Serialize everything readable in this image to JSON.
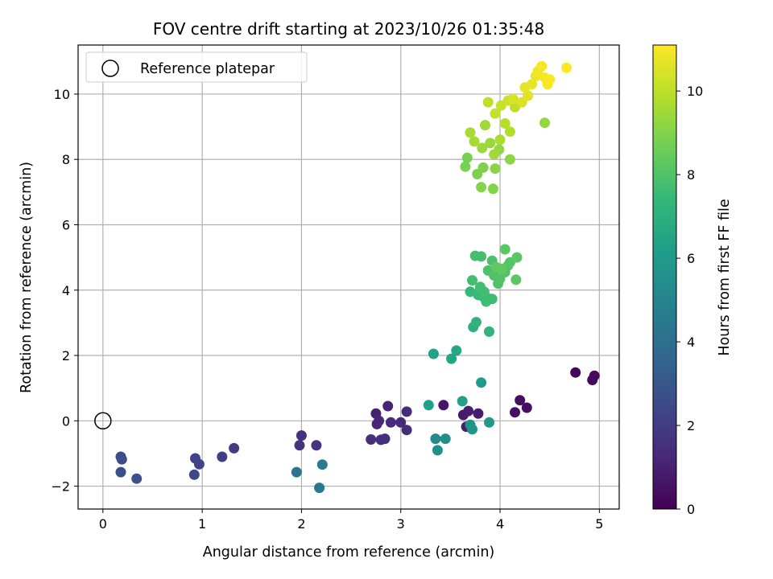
{
  "chart_data": {
    "type": "scatter",
    "title": "FOV centre drift starting at 2023/10/26 01:35:48",
    "xlabel": "Angular distance from reference (arcmin)",
    "ylabel": "Rotation from reference (arcmin)",
    "xlim": [
      -0.25,
      5.2
    ],
    "ylim": [
      -2.7,
      11.5
    ],
    "xticks": [
      0,
      1,
      2,
      3,
      4,
      5
    ],
    "yticks": [
      -2,
      0,
      2,
      4,
      6,
      8,
      10
    ],
    "ytick_labels": [
      "−2",
      "0",
      "2",
      "4",
      "6",
      "8",
      "10"
    ],
    "grid": true,
    "legend": {
      "location": "upper-left",
      "entries": [
        "Reference platepar"
      ]
    },
    "reference_point": {
      "x": 0,
      "y": 0,
      "label": "Reference platepar"
    },
    "colorbar": {
      "label": "Hours from first FF file",
      "colormap": "viridis",
      "range": [
        0,
        11.1
      ],
      "ticks": [
        0,
        2,
        4,
        6,
        8,
        10
      ],
      "colors": [
        "#440154",
        "#482878",
        "#3e4989",
        "#31688e",
        "#26828e",
        "#1f9e89",
        "#35b779",
        "#6ece58",
        "#b5de2b",
        "#fde725"
      ]
    },
    "points": [
      [
        4.76,
        1.48,
        0.2
      ],
      [
        4.93,
        1.25,
        0.25
      ],
      [
        4.95,
        1.38,
        0.3
      ],
      [
        4.2,
        0.63,
        0.4
      ],
      [
        4.27,
        0.4,
        0.45
      ],
      [
        4.15,
        0.26,
        0.5
      ],
      [
        3.43,
        0.48,
        0.7
      ],
      [
        3.63,
        0.18,
        0.8
      ],
      [
        3.68,
        0.3,
        0.9
      ],
      [
        3.78,
        0.22,
        0.9
      ],
      [
        3.66,
        -0.18,
        0.95
      ],
      [
        2.75,
        0.22,
        1.0
      ],
      [
        2.87,
        0.45,
        1.1
      ],
      [
        2.78,
        0.0,
        1.2
      ],
      [
        2.76,
        -0.1,
        1.2
      ],
      [
        2.9,
        -0.05,
        1.3
      ],
      [
        3.0,
        -0.05,
        1.3
      ],
      [
        3.06,
        0.28,
        1.4
      ],
      [
        3.06,
        -0.28,
        1.4
      ],
      [
        2.7,
        -0.57,
        1.5
      ],
      [
        2.8,
        -0.58,
        1.5
      ],
      [
        2.84,
        -0.55,
        1.5
      ],
      [
        2.0,
        -0.45,
        1.6
      ],
      [
        1.98,
        -0.75,
        1.7
      ],
      [
        2.15,
        -0.75,
        1.7
      ],
      [
        1.32,
        -0.84,
        2.0
      ],
      [
        1.2,
        -1.1,
        2.1
      ],
      [
        0.93,
        -1.15,
        2.2
      ],
      [
        0.97,
        -1.33,
        2.3
      ],
      [
        0.92,
        -1.65,
        2.4
      ],
      [
        0.18,
        -1.1,
        2.6
      ],
      [
        0.19,
        -1.18,
        2.6
      ],
      [
        0.18,
        -1.57,
        2.7
      ],
      [
        0.34,
        -1.77,
        2.8
      ],
      [
        1.95,
        -1.57,
        4.3
      ],
      [
        2.18,
        -2.05,
        4.4
      ],
      [
        2.21,
        -1.34,
        4.6
      ],
      [
        3.35,
        -0.55,
        5.3
      ],
      [
        3.45,
        -0.55,
        5.4
      ],
      [
        3.37,
        -0.9,
        5.5
      ],
      [
        3.7,
        -0.12,
        5.7
      ],
      [
        3.72,
        -0.26,
        5.8
      ],
      [
        3.89,
        -0.05,
        5.9
      ],
      [
        3.81,
        1.17,
        6.0
      ],
      [
        3.28,
        0.48,
        6.2
      ],
      [
        3.62,
        0.6,
        6.3
      ],
      [
        3.33,
        2.05,
        6.4
      ],
      [
        3.51,
        1.9,
        6.5
      ],
      [
        3.56,
        2.15,
        6.6
      ],
      [
        3.73,
        2.87,
        7.0
      ],
      [
        3.76,
        3.02,
        7.1
      ],
      [
        3.89,
        2.73,
        7.2
      ],
      [
        3.7,
        3.95,
        7.4
      ],
      [
        3.78,
        3.85,
        7.5
      ],
      [
        3.83,
        3.8,
        7.5
      ],
      [
        3.88,
        3.75,
        7.6
      ],
      [
        3.92,
        3.73,
        7.6
      ],
      [
        3.86,
        3.65,
        7.6
      ],
      [
        3.8,
        4.05,
        7.6
      ],
      [
        3.72,
        4.3,
        7.7
      ],
      [
        3.8,
        4.1,
        7.7
      ],
      [
        3.84,
        3.95,
        7.7
      ],
      [
        3.75,
        5.05,
        7.8
      ],
      [
        3.81,
        5.03,
        7.8
      ],
      [
        3.92,
        4.9,
        7.9
      ],
      [
        3.88,
        4.6,
        7.9
      ],
      [
        3.94,
        4.45,
        8.0
      ],
      [
        3.98,
        4.2,
        8.0
      ],
      [
        4.0,
        4.35,
        8.0
      ],
      [
        4.05,
        4.55,
        8.1
      ],
      [
        4.08,
        4.75,
        8.1
      ],
      [
        4.1,
        4.85,
        8.1
      ],
      [
        4.17,
        5.0,
        8.2
      ],
      [
        4.16,
        4.32,
        8.2
      ],
      [
        4.05,
        5.25,
        8.2
      ],
      [
        4.02,
        4.65,
        8.3
      ],
      [
        3.96,
        4.7,
        8.3
      ],
      [
        3.65,
        7.78,
        8.8
      ],
      [
        3.67,
        8.05,
        8.8
      ],
      [
        3.77,
        7.55,
        8.9
      ],
      [
        3.83,
        7.75,
        8.9
      ],
      [
        3.81,
        7.15,
        9.0
      ],
      [
        3.93,
        7.1,
        9.0
      ],
      [
        3.95,
        7.72,
        9.1
      ],
      [
        4.1,
        8.0,
        9.2
      ],
      [
        4.45,
        9.12,
        9.3
      ],
      [
        3.99,
        8.3,
        9.3
      ],
      [
        3.9,
        8.5,
        9.4
      ],
      [
        3.82,
        8.35,
        9.4
      ],
      [
        3.85,
        9.05,
        9.5
      ],
      [
        3.94,
        8.15,
        9.5
      ],
      [
        3.74,
        8.55,
        9.6
      ],
      [
        3.7,
        8.82,
        9.6
      ],
      [
        4.0,
        8.6,
        9.7
      ],
      [
        4.1,
        8.85,
        9.8
      ],
      [
        4.05,
        9.1,
        9.9
      ],
      [
        4.15,
        9.6,
        10.0
      ],
      [
        3.88,
        9.75,
        10.0
      ],
      [
        3.95,
        9.4,
        10.1
      ],
      [
        4.01,
        9.65,
        10.2
      ],
      [
        4.08,
        9.8,
        10.3
      ],
      [
        4.13,
        9.85,
        10.4
      ],
      [
        4.22,
        9.75,
        10.5
      ],
      [
        4.28,
        9.95,
        10.6
      ],
      [
        4.25,
        10.2,
        10.7
      ],
      [
        4.32,
        10.3,
        10.7
      ],
      [
        4.36,
        10.55,
        10.8
      ],
      [
        4.38,
        10.7,
        10.9
      ],
      [
        4.42,
        10.85,
        11.0
      ],
      [
        4.45,
        10.5,
        11.0
      ],
      [
        4.48,
        10.3,
        11.0
      ],
      [
        4.5,
        10.45,
        11.05
      ],
      [
        4.67,
        10.8,
        11.1
      ]
    ]
  }
}
